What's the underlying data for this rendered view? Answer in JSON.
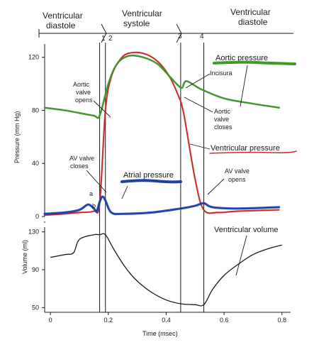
{
  "phases": {
    "diastole_left": [
      "Ventricular",
      "diastole"
    ],
    "systole": [
      "Ventricular",
      "systole"
    ],
    "diastole_right": [
      "Ventricular",
      "diastole"
    ]
  },
  "event_numbers": [
    "1",
    "2",
    "3",
    "4"
  ],
  "pressure_axis": {
    "label": "Pressure (mm Hg)",
    "ticks": [
      0,
      40,
      80,
      120
    ],
    "range": [
      0,
      130
    ]
  },
  "volume_axis": {
    "label": "Volume (ml)",
    "ticks": [
      50,
      90,
      130
    ],
    "range": [
      45,
      135
    ]
  },
  "time_axis": {
    "label": "Time (msec)",
    "ticks": [
      "0",
      "0.2",
      "0.4",
      "0.6",
      "0.8"
    ],
    "tick_values": [
      0,
      0.2,
      0.4,
      0.6,
      0.8
    ],
    "range": [
      -0.02,
      0.83
    ]
  },
  "legend": {
    "aortic": "Aortic pressure",
    "ventricular": "Ventricular pressure",
    "atrial": "Atrial pressure",
    "volume": "Ventricular volume"
  },
  "annotations": {
    "aortic_opens": [
      "Aortic",
      "valve",
      "opens"
    ],
    "incisura": "Incisura",
    "aortic_closes": [
      "Aortic",
      "valve",
      "closes"
    ],
    "av_closes": [
      "AV valve",
      "closes"
    ],
    "av_opens": [
      "AV valve",
      "opens"
    ],
    "wave_a": "a",
    "wave_b": "b"
  },
  "colors": {
    "aortic": "#3e9a2a",
    "ventricular": "#d42a2a",
    "atrial": "#1d3fae",
    "ink": "#1a1a1a"
  },
  "chart_data": {
    "type": "line",
    "xlabel": "Time (msec)",
    "event_lines_x": [
      0.17,
      0.19,
      0.45,
      0.53
    ],
    "pressure": {
      "ylabel": "Pressure (mm Hg)",
      "ylim": [
        0,
        130
      ],
      "series": [
        {
          "key": "aortic",
          "name": "Aortic pressure",
          "x": [
            -0.02,
            0.05,
            0.1,
            0.15,
            0.17,
            0.2,
            0.23,
            0.27,
            0.32,
            0.37,
            0.41,
            0.44,
            0.455,
            0.47,
            0.52,
            0.6,
            0.7,
            0.79
          ],
          "y": [
            82,
            80,
            78,
            76,
            76,
            100,
            115,
            121,
            120,
            115,
            106,
            99,
            97,
            102,
            96,
            89,
            85,
            82
          ]
        },
        {
          "key": "ventricular",
          "name": "Ventricular pressure",
          "x": [
            -0.02,
            0.05,
            0.1,
            0.15,
            0.17,
            0.19,
            0.21,
            0.24,
            0.27,
            0.32,
            0.37,
            0.41,
            0.44,
            0.46,
            0.5,
            0.53,
            0.58,
            0.65,
            0.79
          ],
          "y": [
            1,
            2,
            3,
            4,
            10,
            80,
            105,
            118,
            123,
            123,
            117,
            106,
            92,
            78,
            28,
            5,
            3,
            4,
            5
          ]
        },
        {
          "key": "atrial",
          "name": "Atrial pressure",
          "x": [
            -0.02,
            0.05,
            0.1,
            0.13,
            0.15,
            0.16,
            0.17,
            0.18,
            0.19,
            0.21,
            0.25,
            0.35,
            0.45,
            0.5,
            0.53,
            0.56,
            0.65,
            0.79
          ],
          "y": [
            2,
            3,
            5,
            9,
            6,
            4,
            11,
            15,
            12,
            3,
            2,
            3,
            6,
            8,
            10,
            7,
            6,
            7
          ]
        }
      ]
    },
    "volume": {
      "ylabel": "Volume (ml)",
      "ylim": [
        45,
        135
      ],
      "series": [
        {
          "key": "volume",
          "name": "Ventricular volume",
          "x": [
            0,
            0.05,
            0.08,
            0.1,
            0.15,
            0.17,
            0.19,
            0.22,
            0.26,
            0.3,
            0.35,
            0.4,
            0.45,
            0.5,
            0.53,
            0.56,
            0.6,
            0.65,
            0.7,
            0.75,
            0.8
          ],
          "y": [
            103,
            106,
            108,
            122,
            127,
            127,
            127,
            111,
            92,
            78,
            66,
            58,
            54,
            53,
            53,
            69,
            84,
            96,
            106,
            112,
            116
          ]
        }
      ]
    }
  }
}
